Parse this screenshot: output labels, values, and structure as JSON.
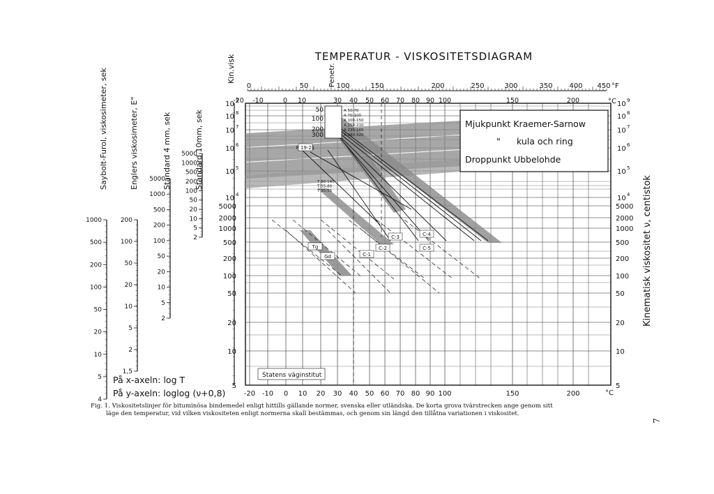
{
  "chart_data": {
    "type": "line",
    "title": "TEMPERATUR - VISKOSITETSDIAGRAM",
    "x_axis": {
      "label": "°C",
      "scale": "log T",
      "ticks_bottom": [
        "-20",
        "-10",
        "0",
        "10",
        "20",
        "30",
        "40",
        "50",
        "60",
        "70",
        "80",
        "90",
        "100",
        "150",
        "200"
      ],
      "ticks_top_c": [
        "-20",
        "-10",
        "0",
        "10",
        "30",
        "40",
        "50",
        "60",
        "70",
        "80",
        "90",
        "100",
        "150",
        "200"
      ],
      "unit_bottom": "°C",
      "unit_top_c": "°C",
      "ticks_top_f": [
        "0",
        "50",
        "100",
        "150",
        "200",
        "250",
        "300",
        "350",
        "400",
        "450"
      ],
      "unit_top_f": "°F"
    },
    "y_axis": {
      "label": "Kinematisk viskositet ν, centistok",
      "scale": "loglog (ν+0,8)",
      "ticks": [
        "5",
        "10",
        "20",
        "50",
        "100",
        "200",
        "500",
        "1000",
        "2000",
        "5000"
      ],
      "exp_ticks": [
        {
          "base": "10",
          "exp": "4"
        },
        {
          "base": "10",
          "exp": "5"
        },
        {
          "base": "10",
          "exp": "6"
        },
        {
          "base": "10",
          "exp": "7"
        },
        {
          "base": "10",
          "exp": "8"
        },
        {
          "base": "10",
          "exp": "9"
        }
      ]
    },
    "scales": [
      {
        "label": "Saybolt-Furol, viskosimeter, sek",
        "ticks": [
          "1000",
          "500",
          "200",
          "100",
          "50",
          "20",
          "10",
          "5",
          "4"
        ]
      },
      {
        "label": "Englers viskosimeter, E°",
        "ticks": [
          "200",
          "100",
          "50",
          "20",
          "10",
          "5",
          "2",
          "1,5"
        ]
      },
      {
        "label": "Standard 4 mm, sek",
        "ticks": [
          "5000",
          "1000",
          "500",
          "200",
          "100",
          "50",
          "20",
          "10",
          "5",
          "2"
        ]
      },
      {
        "label": "Standard 10mm, sek",
        "ticks": [
          "5000",
          "1000",
          "500",
          "200",
          "100",
          "50",
          "20",
          "10",
          "5",
          "2"
        ]
      },
      {
        "label": "Kin.visk",
        "ticks": []
      }
    ],
    "penetration_scale": {
      "label": "Penetr.",
      "ticks": [
        "50",
        "100",
        "200",
        "300"
      ],
      "grades": [
        "A 50-70",
        "A 70-100",
        "A 100-150",
        "A 150-210",
        "A 235-165",
        "A 280-320"
      ]
    },
    "tar_grades": [
      "T 80-140",
      "T 55-80",
      "T 35-55"
    ],
    "legend_box": [
      {
        "symbol": "",
        "text": "Mjukpunkt Kraemer-Sarnow"
      },
      {
        "symbol": "\"",
        "text": "kula och ring"
      },
      {
        "symbol": "",
        "text": "Droppunkt Ubbelohde"
      }
    ],
    "series": [
      {
        "name": "F 19-21"
      },
      {
        "name": "Tg"
      },
      {
        "name": "Gd"
      },
      {
        "name": "C-1"
      },
      {
        "name": "C-2"
      },
      {
        "name": "C-3"
      },
      {
        "name": "C-4"
      },
      {
        "name": "C-5"
      }
    ],
    "annotations": {
      "x_axis_note": "På x-axeln: log T",
      "y_axis_note": "På y-axeln: loglog (ν+0,8)",
      "credit": "Statens väginstitut"
    }
  },
  "caption": {
    "line1": "Fig. 1. Viskositetslinjer för bituminösa bindemedel enligt hittills gällande normer, svenska eller utländska. De korta grova tvärstrecken ange genom sitt",
    "line2": "läge den temperatur, vid vilken viskositeten enligt normerna skall bestämmas, och genom sin längd den tillåtna variationen i viskositet."
  },
  "page_mark": "7"
}
